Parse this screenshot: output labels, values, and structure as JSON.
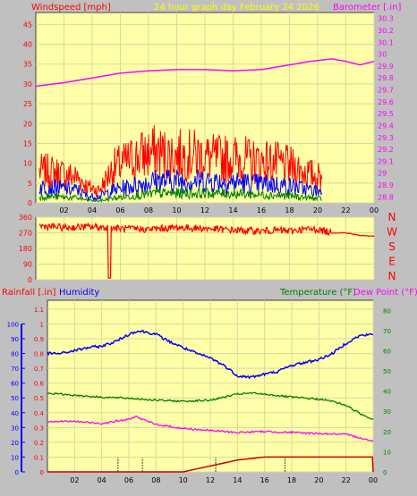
{
  "header": {
    "title": "24 hour graph day   February 24 2026",
    "windspeed_label": "Windspeed [mph]",
    "barometer_label": "Barometer [.in]"
  },
  "colors": {
    "background": "#c0c0c0",
    "plot_bg": "#ffffa8",
    "grid": "#d8d8a0",
    "red": "#ff0000",
    "blue": "#0000ff",
    "green": "#008000",
    "magenta": "#ff00ff",
    "dark_red": "#cc0000",
    "title_yellow": "#ffff00"
  },
  "chart_data": [
    {
      "type": "line",
      "id": "wind_baro",
      "x_ticks": [
        "02",
        "04",
        "06",
        "08",
        "10",
        "12",
        "14",
        "16",
        "18",
        "20",
        "22",
        "00"
      ],
      "y_left_ticks": [
        "0",
        "5",
        "10",
        "15",
        "20",
        "25",
        "30",
        "35",
        "40",
        "45"
      ],
      "y_left_range": [
        0,
        48
      ],
      "y_right_ticks": [
        "28.8",
        "28.9",
        "29",
        "29.1",
        "29.2",
        "29.3",
        "29.4",
        "29.5",
        "29.6",
        "29.7",
        "29.8",
        "29.9",
        "30",
        "30.1",
        "30.2",
        "30.3"
      ],
      "y_right_range": [
        28.75,
        30.35
      ],
      "series": [
        {
          "key": "gust",
          "color": "#ff0000",
          "axis": "left",
          "x": [
            0.25,
            1,
            2,
            3,
            3.7,
            4.5,
            5.5,
            6.5,
            7.5,
            8.5,
            9.5,
            10.5,
            11.5,
            12.5,
            13.5,
            14.5,
            15.5,
            16.5,
            17.5,
            18.5,
            19.5,
            20.3
          ],
          "y": [
            10,
            10,
            9,
            8,
            5,
            4,
            11,
            13,
            15,
            16,
            15,
            15,
            15,
            14,
            14,
            14,
            13,
            13,
            12,
            11,
            9,
            8
          ]
        },
        {
          "key": "wind_max",
          "color": "#0000ff",
          "axis": "left",
          "x": [
            0.25,
            1,
            2,
            3,
            3.7,
            4.5,
            5.5,
            6.5,
            7.5,
            8.5,
            9.5,
            10.5,
            11.5,
            12.5,
            13.5,
            14.5,
            15.5,
            16.5,
            17.5,
            18.5,
            19.5,
            20.3
          ],
          "y": [
            5,
            5,
            4.5,
            4,
            2,
            2,
            4,
            5,
            6,
            7,
            7,
            7,
            7,
            7,
            6.5,
            6.5,
            6,
            6,
            5.5,
            5,
            4,
            3.5
          ]
        },
        {
          "key": "wind_avg",
          "color": "#008000",
          "axis": "left",
          "x": [
            0.25,
            1,
            2,
            3,
            3.7,
            4.5,
            5.5,
            6.5,
            7.5,
            8.5,
            9.5,
            10.5,
            11.5,
            12.5,
            13.5,
            14.5,
            15.5,
            16.5,
            17.5,
            18.5,
            19.5,
            20.3
          ],
          "y": [
            2,
            2,
            1.8,
            1.5,
            0.8,
            0.6,
            1.5,
            2,
            2.5,
            3,
            3,
            3,
            3,
            3,
            3,
            2.8,
            2.6,
            2.5,
            2.3,
            2,
            1.5,
            1.3
          ]
        },
        {
          "key": "barometer",
          "color": "#ff00ff",
          "axis": "right",
          "x": [
            0,
            2,
            4,
            6,
            8,
            10,
            12,
            14,
            16,
            18,
            19.5,
            21,
            22,
            23,
            24
          ],
          "y": [
            29.73,
            29.76,
            29.8,
            29.84,
            29.86,
            29.87,
            29.87,
            29.86,
            29.87,
            29.91,
            29.94,
            29.96,
            29.94,
            29.91,
            29.94
          ]
        }
      ]
    },
    {
      "type": "line",
      "id": "wind_direction",
      "x_ticks": [
        "02",
        "04",
        "06",
        "08",
        "10",
        "12",
        "14",
        "16",
        "18",
        "20",
        "22",
        "00"
      ],
      "y_ticks": [
        "0",
        "90",
        "180",
        "270",
        "360"
      ],
      "y_range": [
        0,
        360
      ],
      "right_labels": [
        "N",
        "W",
        "S",
        "E",
        "N"
      ],
      "series": [
        {
          "key": "direction",
          "color": "#ff0000",
          "x": [
            0.25,
            2,
            4,
            5.1,
            5.2,
            5.3,
            6,
            8,
            10,
            12,
            14,
            16,
            17,
            18,
            19,
            20,
            21,
            22,
            23,
            24
          ],
          "y": [
            310,
            300,
            305,
            300,
            10,
            300,
            295,
            290,
            300,
            295,
            285,
            280,
            285,
            280,
            290,
            290,
            270,
            270,
            255,
            250
          ]
        }
      ]
    },
    {
      "type": "line",
      "id": "rain_humidity_temp",
      "x_ticks": [
        "02",
        "04",
        "06",
        "08",
        "10",
        "12",
        "14",
        "16",
        "18",
        "20",
        "22",
        "00"
      ],
      "rain_ticks": [
        "0",
        "0.1",
        "0.2",
        "0.3",
        "0.4",
        "0.5",
        "0.6",
        "0.7",
        "0.8",
        "0.9",
        "1",
        "1.1"
      ],
      "rain_range": [
        0,
        1.16
      ],
      "humidity_ticks": [
        "0",
        "10",
        "20",
        "30",
        "40",
        "50",
        "60",
        "70",
        "80",
        "90",
        "100"
      ],
      "humidity_range": [
        0,
        116
      ],
      "temp_ticks": [
        "0",
        "10",
        "20",
        "30",
        "40",
        "50",
        "60",
        "70",
        "80"
      ],
      "temp_range": [
        0,
        85
      ],
      "rainfall_label": "Rainfall [.in]",
      "humidity_label": "Humidity",
      "temperature_label": "Temperature (°F)",
      "dewpoint_label": "Dew Point (°F)",
      "series": [
        {
          "key": "humidity",
          "color": "#0000ff",
          "axis": "humidity",
          "x": [
            0,
            1,
            2,
            3,
            4,
            5,
            6,
            6.5,
            7,
            8,
            9,
            10,
            11,
            12,
            13,
            14,
            15,
            16,
            17,
            18,
            19,
            20,
            21,
            22,
            23,
            24
          ],
          "y": [
            80,
            80,
            82,
            84,
            85,
            88,
            93,
            95,
            95,
            93,
            88,
            84,
            80,
            77,
            72,
            65,
            64,
            66,
            68,
            72,
            74,
            76,
            80,
            87,
            92,
            93
          ]
        },
        {
          "key": "temperature",
          "color": "#008000",
          "axis": "temp",
          "x": [
            0,
            2,
            4,
            6,
            8,
            10,
            12,
            13,
            14,
            15,
            16,
            18,
            20,
            21,
            22,
            23,
            24
          ],
          "y": [
            39,
            38,
            37,
            36.5,
            35.5,
            35,
            35.5,
            37,
            38.5,
            39,
            38.5,
            37,
            36,
            35,
            33,
            29,
            26
          ]
        },
        {
          "key": "dewpoint",
          "color": "#ff00ff",
          "axis": "temp",
          "x": [
            0,
            2,
            4,
            5,
            6,
            6.5,
            7,
            8,
            10,
            12,
            14,
            16,
            18,
            20,
            22,
            23,
            24
          ],
          "y": [
            25,
            25,
            24,
            25,
            26,
            27.5,
            26,
            23.5,
            21.5,
            20.5,
            19.5,
            20,
            19.5,
            19,
            18.5,
            17,
            15
          ]
        },
        {
          "key": "rainfall",
          "color": "#cc0000",
          "axis": "rain",
          "x": [
            0,
            10,
            11,
            12,
            13,
            14,
            15,
            16,
            17,
            18,
            19,
            20,
            21,
            22,
            23,
            23.95,
            24
          ],
          "y": [
            0,
            0,
            0.02,
            0.04,
            0.06,
            0.08,
            0.09,
            0.1,
            0.1,
            0.1,
            0.1,
            0.1,
            0.1,
            0.1,
            0.1,
            0.1,
            0
          ]
        }
      ],
      "rain_rate_markers_x": [
        5.2,
        7,
        12.4,
        17.5
      ]
    }
  ]
}
